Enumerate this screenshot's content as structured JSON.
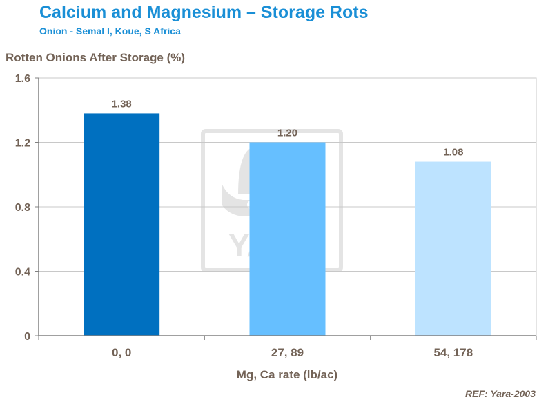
{
  "title": "Calcium and Magnesium – Storage Rots",
  "subtitle": "Onion - Semal I, Koue, S Africa",
  "reference": "REF: Yara-2003",
  "watermark": {
    "text": "YARA"
  },
  "colors": {
    "title": "#1a8fd6",
    "text": "#736357",
    "grid": "#c8c8c8",
    "bars": [
      "#0070c0",
      "#66bfff",
      "#bde3ff"
    ]
  },
  "chart_data": {
    "type": "bar",
    "title": "Calcium and Magnesium – Storage Rots",
    "subtitle": "Onion - Semal I, Koue, S Africa",
    "ylabel": "Rotten Onions After Storage (%)",
    "xlabel": "Mg, Ca rate (lb/ac)",
    "categories": [
      "0, 0",
      "27, 89",
      "54, 178"
    ],
    "values": [
      1.38,
      1.2,
      1.08
    ],
    "data_labels": [
      "1.38",
      "1.20",
      "1.08"
    ],
    "ylim": [
      0,
      1.6
    ],
    "yticks": [
      0,
      0.4,
      0.8,
      1.2,
      1.6
    ],
    "ytick_labels": [
      "0",
      "0.4",
      "0.8",
      "1.2",
      "1.6"
    ],
    "grid": true,
    "legend": "none"
  }
}
